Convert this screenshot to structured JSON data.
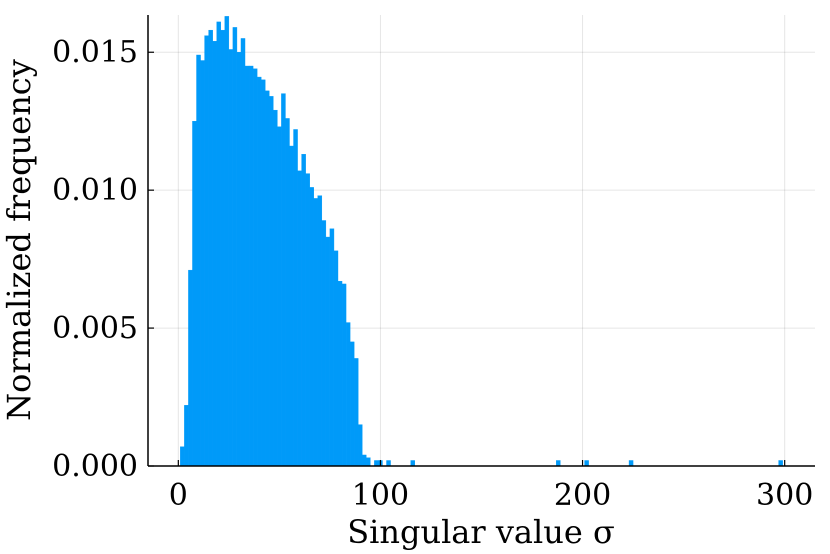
{
  "chart_data": {
    "type": "bar",
    "title": "",
    "xlabel": "Singular value σ",
    "ylabel": "Normalized frequency",
    "xlim": [
      -15,
      315
    ],
    "ylim": [
      0,
      0.01635
    ],
    "xticks": [
      0,
      100,
      200,
      300
    ],
    "xtick_labels": [
      "0",
      "100",
      "200",
      "300"
    ],
    "yticks": [
      0,
      0.005,
      0.01,
      0.015
    ],
    "ytick_labels": [
      "0.000",
      "0.005",
      "0.010",
      "0.015"
    ],
    "grid": true,
    "legend": "none",
    "bar_color": "#009AF9",
    "bin_width": 2,
    "bins": [
      {
        "x": 2,
        "y": 0.0007
      },
      {
        "x": 4,
        "y": 0.0022
      },
      {
        "x": 6,
        "y": 0.0071
      },
      {
        "x": 8,
        "y": 0.0125
      },
      {
        "x": 10,
        "y": 0.0149
      },
      {
        "x": 12,
        "y": 0.0147
      },
      {
        "x": 14,
        "y": 0.0156
      },
      {
        "x": 16,
        "y": 0.0158
      },
      {
        "x": 18,
        "y": 0.0154
      },
      {
        "x": 20,
        "y": 0.0161
      },
      {
        "x": 22,
        "y": 0.0158
      },
      {
        "x": 24,
        "y": 0.0163
      },
      {
        "x": 26,
        "y": 0.0151
      },
      {
        "x": 28,
        "y": 0.0159
      },
      {
        "x": 30,
        "y": 0.015
      },
      {
        "x": 32,
        "y": 0.0155
      },
      {
        "x": 34,
        "y": 0.0145
      },
      {
        "x": 36,
        "y": 0.0145
      },
      {
        "x": 38,
        "y": 0.0144
      },
      {
        "x": 40,
        "y": 0.0141
      },
      {
        "x": 42,
        "y": 0.014
      },
      {
        "x": 44,
        "y": 0.0136
      },
      {
        "x": 46,
        "y": 0.0134
      },
      {
        "x": 48,
        "y": 0.0129
      },
      {
        "x": 50,
        "y": 0.0123
      },
      {
        "x": 52,
        "y": 0.0135
      },
      {
        "x": 54,
        "y": 0.0126
      },
      {
        "x": 56,
        "y": 0.0116
      },
      {
        "x": 58,
        "y": 0.0122
      },
      {
        "x": 60,
        "y": 0.0107
      },
      {
        "x": 62,
        "y": 0.0113
      },
      {
        "x": 64,
        "y": 0.0106
      },
      {
        "x": 66,
        "y": 0.0101
      },
      {
        "x": 68,
        "y": 0.0097
      },
      {
        "x": 70,
        "y": 0.0098
      },
      {
        "x": 72,
        "y": 0.0089
      },
      {
        "x": 74,
        "y": 0.0083
      },
      {
        "x": 76,
        "y": 0.0086
      },
      {
        "x": 78,
        "y": 0.0078
      },
      {
        "x": 80,
        "y": 0.0067
      },
      {
        "x": 82,
        "y": 0.0066
      },
      {
        "x": 84,
        "y": 0.0052
      },
      {
        "x": 86,
        "y": 0.0045
      },
      {
        "x": 88,
        "y": 0.0039
      },
      {
        "x": 90,
        "y": 0.0015
      },
      {
        "x": 92,
        "y": 0.0004
      },
      {
        "x": 94,
        "y": 0.0003
      },
      {
        "x": 98,
        "y": 0.0002
      },
      {
        "x": 100,
        "y": 0.0002
      },
      {
        "x": 104,
        "y": 0.0002
      },
      {
        "x": 116,
        "y": 0.0002
      },
      {
        "x": 188,
        "y": 0.0002
      },
      {
        "x": 202,
        "y": 0.0002
      },
      {
        "x": 224,
        "y": 0.0002
      },
      {
        "x": 298,
        "y": 0.0002
      }
    ]
  }
}
